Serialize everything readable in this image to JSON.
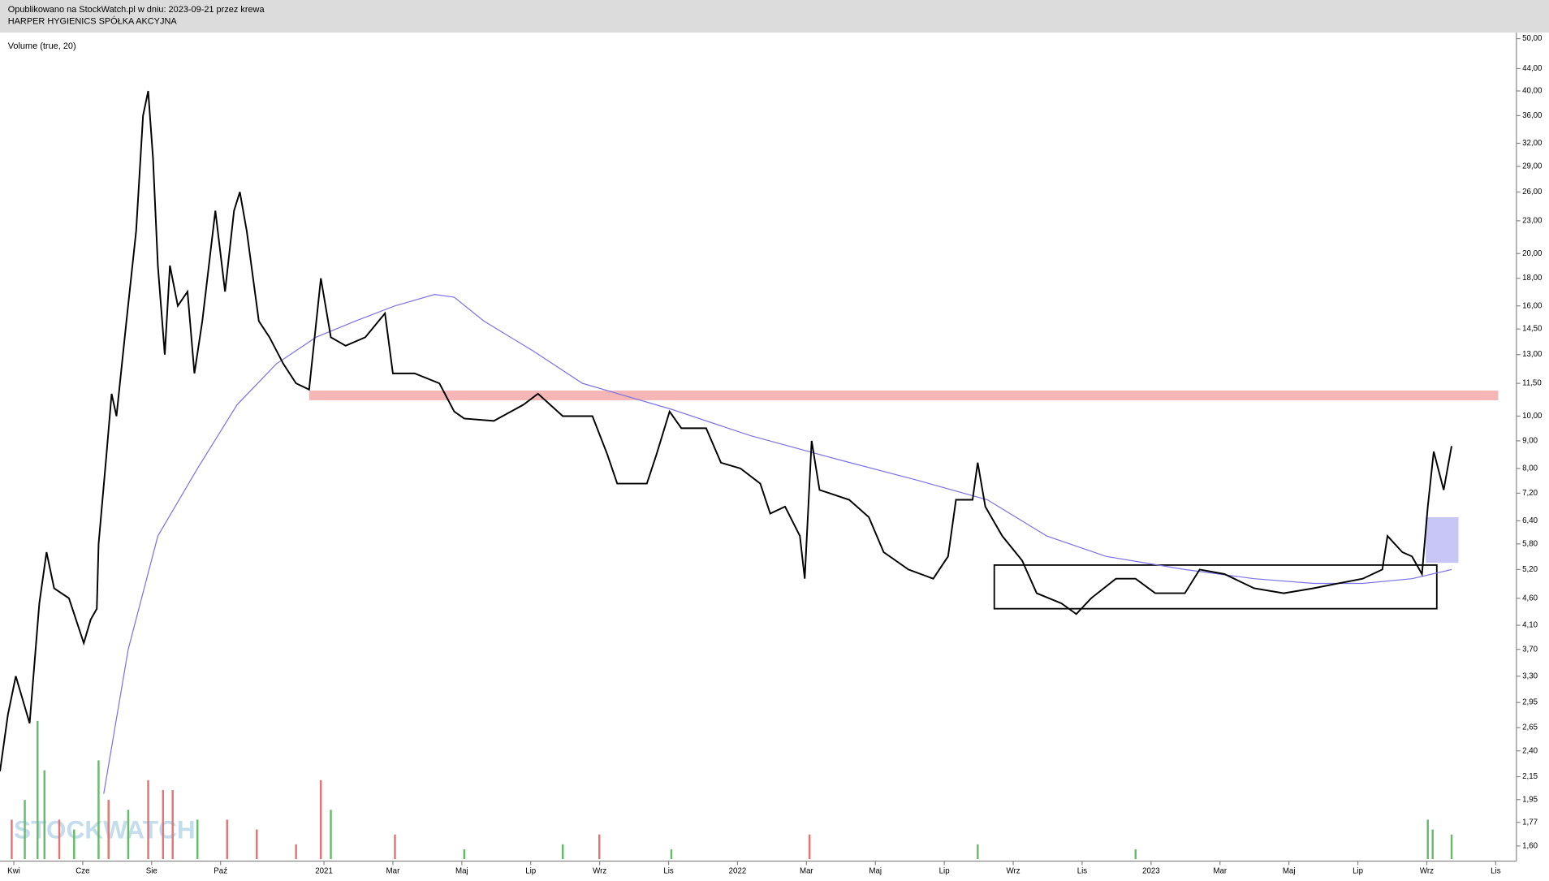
{
  "header": {
    "line1": "Opublikowano na StockWatch.pl w dniu: 2023-09-21 przez krewa",
    "line2": "HARPER HYGIENICS SPÓŁKA AKCYJNA"
  },
  "chart_data": {
    "type": "line",
    "indicator_label": "Volume (true, 20)",
    "watermark": "STOCKWATCH",
    "log_scale": true,
    "xlim": [
      -0.4,
      43.6
    ],
    "xticks": [
      {
        "value": 0,
        "label": "Kwi"
      },
      {
        "value": 2,
        "label": "Cze"
      },
      {
        "value": 4,
        "label": "Sie"
      },
      {
        "value": 6,
        "label": "Paź"
      },
      {
        "value": 9,
        "label": "2021"
      },
      {
        "value": 11,
        "label": "Mar"
      },
      {
        "value": 13,
        "label": "Maj"
      },
      {
        "value": 15,
        "label": "Lip"
      },
      {
        "value": 17,
        "label": "Wrz"
      },
      {
        "value": 19,
        "label": "Lis"
      },
      {
        "value": 21,
        "label": "2022"
      },
      {
        "value": 23,
        "label": "Mar"
      },
      {
        "value": 25,
        "label": "Maj"
      },
      {
        "value": 27,
        "label": "Lip"
      },
      {
        "value": 29,
        "label": "Wrz"
      },
      {
        "value": 31,
        "label": "Lis"
      },
      {
        "value": 33,
        "label": "2023"
      },
      {
        "value": 35,
        "label": "Mar"
      },
      {
        "value": 37,
        "label": "Maj"
      },
      {
        "value": 39,
        "label": "Lip"
      },
      {
        "value": 41,
        "label": "Wrz"
      },
      {
        "value": 43,
        "label": "Lis"
      }
    ],
    "ylim": [
      1.5,
      51.3
    ],
    "yticks": [
      {
        "value": 50,
        "label": "50,00"
      },
      {
        "value": 44,
        "label": "44,00"
      },
      {
        "value": 40,
        "label": "40,00"
      },
      {
        "value": 36,
        "label": "36,00"
      },
      {
        "value": 32,
        "label": "32,00"
      },
      {
        "value": 29,
        "label": "29,00"
      },
      {
        "value": 26,
        "label": "26,00"
      },
      {
        "value": 23,
        "label": "23,00"
      },
      {
        "value": 20,
        "label": "20,00"
      },
      {
        "value": 18,
        "label": "18,00"
      },
      {
        "value": 16,
        "label": "16,00"
      },
      {
        "value": 14.5,
        "label": "14,50"
      },
      {
        "value": 13,
        "label": "13,00"
      },
      {
        "value": 11.5,
        "label": "11,50"
      },
      {
        "value": 10,
        "label": "10,00"
      },
      {
        "value": 9,
        "label": "9,00"
      },
      {
        "value": 8,
        "label": "8,00"
      },
      {
        "value": 7.2,
        "label": "7,20"
      },
      {
        "value": 6.4,
        "label": "6,40"
      },
      {
        "value": 5.8,
        "label": "5,80"
      },
      {
        "value": 5.2,
        "label": "5,20"
      },
      {
        "value": 4.6,
        "label": "4,60"
      },
      {
        "value": 4.1,
        "label": "4,10"
      },
      {
        "value": 3.7,
        "label": "3,70"
      },
      {
        "value": 3.3,
        "label": "3,30"
      },
      {
        "value": 2.95,
        "label": "2,95"
      },
      {
        "value": 2.65,
        "label": "2,65"
      },
      {
        "value": 2.4,
        "label": "2,40"
      },
      {
        "value": 2.15,
        "label": "2,15"
      },
      {
        "value": 1.95,
        "label": "1,95"
      },
      {
        "value": 1.77,
        "label": "1,77"
      },
      {
        "value": 1.6,
        "label": "1,60"
      }
    ],
    "series": [
      {
        "color": "#000000",
        "x": [
          -0.4,
          -0.17,
          0.06,
          0.46,
          0.74,
          0.95,
          1.17,
          1.6,
          2.03,
          2.23,
          2.41,
          2.46,
          2.69,
          2.84,
          2.98,
          3.27,
          3.55,
          3.75,
          3.9,
          4.04,
          4.18,
          4.38,
          4.53,
          4.76,
          5.04,
          5.24,
          5.47,
          5.85,
          6.13,
          6.39,
          6.56,
          6.76,
          7.11,
          7.42,
          7.82,
          8.19,
          8.57,
          8.91,
          9.2,
          9.63,
          10.2,
          10.77,
          11.0,
          11.63,
          12.35,
          12.78,
          13.07,
          13.93,
          14.79,
          15.21,
          15.93,
          16.79,
          17.22,
          17.51,
          18.37,
          18.65,
          19.03,
          19.37,
          20.09,
          20.52,
          21.09,
          21.66,
          21.95,
          22.38,
          22.81,
          22.95,
          23.15,
          23.38,
          24.24,
          24.81,
          25.24,
          25.96,
          26.68,
          27.11,
          27.34,
          27.82,
          27.97,
          28.19,
          28.68,
          29.26,
          29.68,
          30.4,
          30.83,
          31.26,
          31.98,
          32.55,
          33.12,
          33.98,
          34.41,
          35.13,
          35.99,
          36.85,
          37.71,
          38.42,
          39.14,
          39.71,
          39.86,
          40.29,
          40.57,
          40.86,
          41.03,
          41.2,
          41.49,
          41.72
        ],
        "values": [
          2.2,
          2.8,
          3.3,
          2.7,
          4.5,
          5.6,
          4.8,
          4.6,
          3.8,
          4.2,
          4.4,
          5.8,
          8.5,
          11,
          10,
          15,
          22,
          36,
          40,
          30,
          19,
          13,
          19,
          16,
          17,
          12,
          15,
          24,
          17,
          24,
          26,
          22,
          15,
          14,
          12.5,
          11.5,
          11.2,
          18,
          14,
          13.5,
          14,
          15.5,
          12,
          12,
          11.5,
          10.2,
          9.9,
          9.8,
          10.5,
          11,
          10,
          10,
          8.5,
          7.5,
          7.5,
          8.5,
          10.2,
          9.5,
          9.5,
          8.2,
          8,
          7.5,
          6.6,
          6.8,
          6,
          5,
          9,
          7.3,
          7,
          6.5,
          5.6,
          5.2,
          5,
          5.5,
          7,
          7,
          8.2,
          6.8,
          6,
          5.4,
          4.7,
          4.5,
          4.3,
          4.6,
          5,
          5,
          4.7,
          4.7,
          5.2,
          5.1,
          4.8,
          4.7,
          4.8,
          4.9,
          5,
          5.2,
          6,
          5.6,
          5.5,
          5.1,
          6.8,
          8.6,
          7.3,
          8.8
        ]
      },
      {
        "color": "#7b72e6",
        "x": [
          2.61,
          3.32,
          4.18,
          5.33,
          6.48,
          7.62,
          8.77,
          9.91,
          11.06,
          12.21,
          12.78,
          13.64,
          15.07,
          16.5,
          19.08,
          21.38,
          23.95,
          26.25,
          28.25,
          29.97,
          31.69,
          33.98,
          35.99,
          37.71,
          39.14,
          40.57,
          41.72
        ],
        "values": [
          2,
          3.7,
          6,
          8,
          10.5,
          12.5,
          14,
          15,
          16,
          16.8,
          16.6,
          15,
          13.2,
          11.5,
          10.3,
          9.2,
          8.3,
          7.6,
          7,
          6,
          5.5,
          5.2,
          5,
          4.9,
          4.9,
          5,
          5.2
        ]
      }
    ],
    "annotations": [
      {
        "shape": "band",
        "color": "#f7b6b6",
        "x": [
          8.57,
          43.07
        ],
        "y": [
          10.7,
          11.15
        ]
      },
      {
        "shape": "box",
        "color": "#000000",
        "x": [
          28.45,
          41.29
        ],
        "y": [
          4.4,
          5.3
        ]
      },
      {
        "shape": "fill",
        "color": "#c8c6f7",
        "x": [
          40.97,
          41.92
        ],
        "y": [
          5.35,
          6.5
        ]
      }
    ],
    "volume": {
      "ylim": [
        0,
        150
      ],
      "x": [
        -0.06,
        0.32,
        0.69,
        0.89,
        1.32,
        1.75,
        2.46,
        2.75,
        3.32,
        3.9,
        4.33,
        4.61,
        5.33,
        6.19,
        7.05,
        8.19,
        8.91,
        9.2,
        11.06,
        13.07,
        15.93,
        16.99,
        19.08,
        23.09,
        27.97,
        32.55,
        41.03,
        41.17,
        41.72
      ],
      "values": [
        40,
        60,
        140,
        90,
        40,
        30,
        100,
        60,
        50,
        80,
        70,
        70,
        40,
        40,
        30,
        15,
        80,
        50,
        25,
        10,
        15,
        25,
        10,
        25,
        15,
        10,
        40,
        30,
        25
      ],
      "colors": [
        "#e57373",
        "#66bb6a",
        "#66bb6a",
        "#66bb6a",
        "#e57373",
        "#66bb6a",
        "#66bb6a",
        "#e57373",
        "#66bb6a",
        "#e57373",
        "#e57373",
        "#e57373",
        "#66bb6a",
        "#e57373",
        "#e57373",
        "#e57373",
        "#e57373",
        "#66bb6a",
        "#e57373",
        "#66bb6a",
        "#66bb6a",
        "#e57373",
        "#66bb6a",
        "#e57373",
        "#66bb6a",
        "#66bb6a",
        "#66bb6a",
        "#66bb6a",
        "#66bb6a"
      ]
    }
  }
}
